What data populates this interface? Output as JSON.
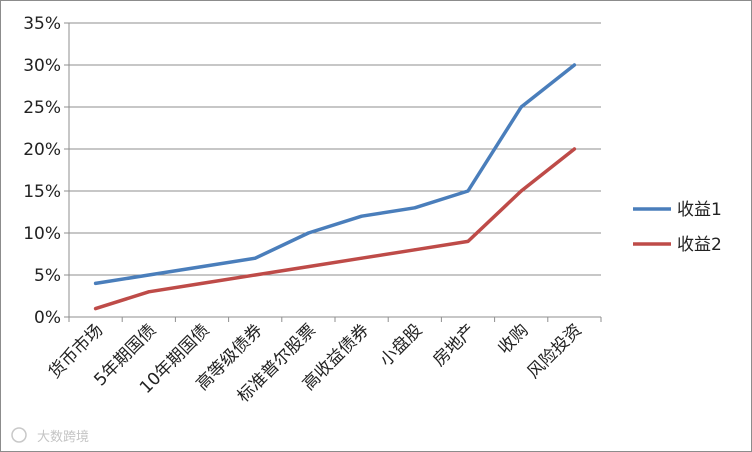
{
  "chart_data": {
    "type": "line",
    "categories": [
      "货币市场",
      "5年期国债",
      "10年期国债",
      "高等级债券",
      "标准普尔股票",
      "高收益债券",
      "小盘股",
      "房地产",
      "收购",
      "风险投资"
    ],
    "series": [
      {
        "name": "收益1",
        "color": "#4a7ebb",
        "values": [
          4,
          5,
          6,
          7,
          10,
          12,
          13,
          15,
          25,
          30
        ]
      },
      {
        "name": "收益2",
        "color": "#be4b48",
        "values": [
          1,
          3,
          4,
          5,
          6,
          7,
          8,
          9,
          15,
          20
        ]
      }
    ],
    "y_ticks": [
      "0%",
      "5%",
      "10%",
      "15%",
      "20%",
      "25%",
      "30%",
      "35%"
    ],
    "ylim": [
      0,
      35
    ],
    "grid": true,
    "legend_position": "right"
  },
  "watermark": {
    "text": "大数跨境"
  }
}
